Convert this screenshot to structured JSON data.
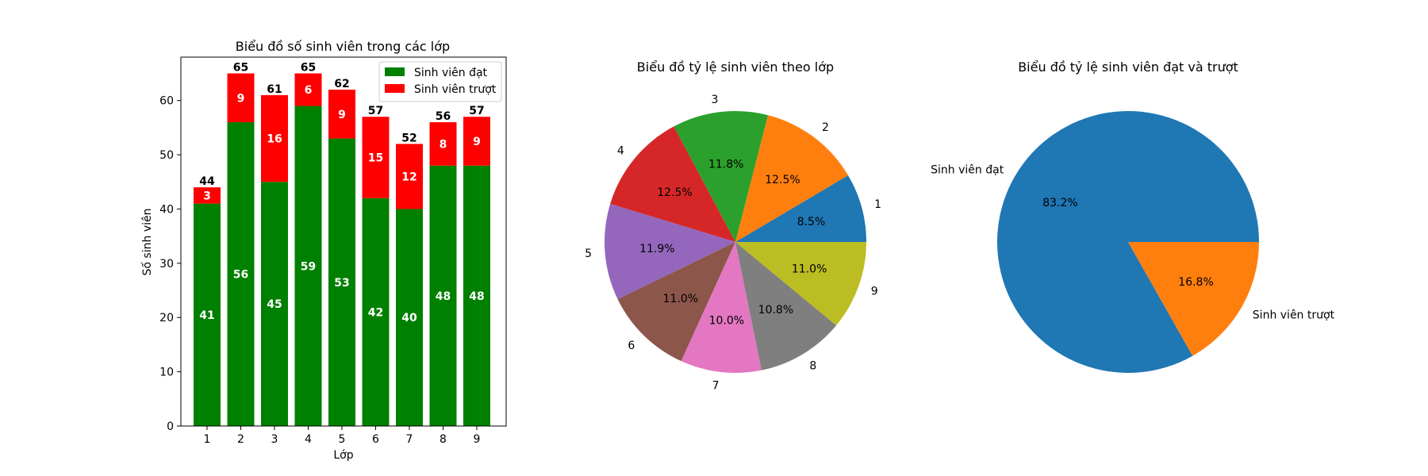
{
  "chart_data": [
    {
      "type": "bar",
      "title": "Biểu đồ số sinh viên trong các lớp",
      "xlabel": "Lớp",
      "ylabel": "Số sinh viên",
      "categories": [
        "1",
        "2",
        "3",
        "4",
        "5",
        "6",
        "7",
        "8",
        "9"
      ],
      "series": [
        {
          "name": "Sinh viên đạt",
          "color": "#008000",
          "values": [
            41,
            56,
            45,
            59,
            53,
            42,
            40,
            48,
            48
          ]
        },
        {
          "name": "Sinh viên trượt",
          "color": "#ff0000",
          "values": [
            3,
            9,
            16,
            6,
            9,
            15,
            12,
            8,
            9
          ]
        }
      ],
      "totals": [
        44,
        65,
        61,
        65,
        62,
        57,
        52,
        56,
        57
      ],
      "ylim": [
        0,
        68
      ],
      "yticks": [
        0,
        10,
        20,
        30,
        40,
        50,
        60
      ],
      "stacked": true,
      "legend": "top-right",
      "grid": false
    },
    {
      "type": "pie",
      "title": "Biểu đồ tỷ lệ sinh viên theo lớp",
      "labels": [
        "1",
        "2",
        "3",
        "4",
        "5",
        "6",
        "7",
        "8",
        "9"
      ],
      "values": [
        8.5,
        12.5,
        11.8,
        12.5,
        11.9,
        11.0,
        10.0,
        10.8,
        11.0
      ],
      "pct_labels": [
        "8.5%",
        "12.5%",
        "11.8%",
        "12.5%",
        "11.9%",
        "11.0%",
        "10.0%",
        "10.8%",
        "11.0%"
      ],
      "colors": [
        "#1f77b4",
        "#ff7f0e",
        "#2ca02c",
        "#d62728",
        "#9467bd",
        "#8c564b",
        "#e377c2",
        "#7f7f7f",
        "#bcbd22"
      ]
    },
    {
      "type": "pie",
      "title": "Biểu đồ tỷ lệ sinh viên đạt và trượt",
      "labels": [
        "Sinh viên đạt",
        "Sinh viên trượt"
      ],
      "values": [
        83.2,
        16.8
      ],
      "pct_labels": [
        "83.2%",
        "16.8%"
      ],
      "colors": [
        "#1f77b4",
        "#ff7f0e"
      ]
    }
  ]
}
